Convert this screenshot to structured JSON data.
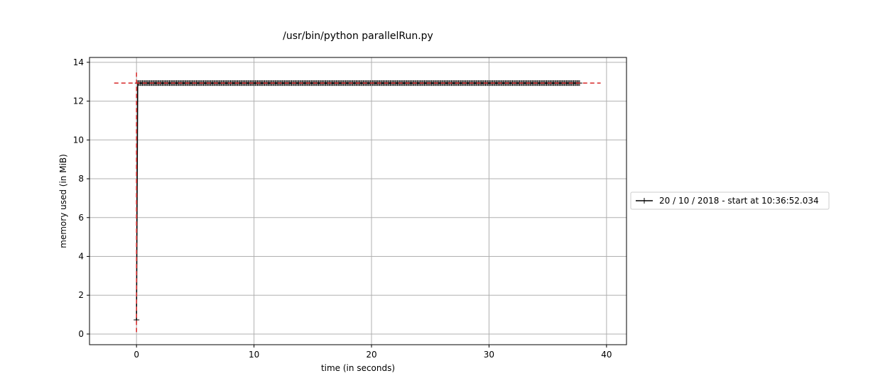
{
  "chart_data": {
    "type": "line",
    "title": "/usr/bin/python parallelRun.py",
    "xlabel": "time (in seconds)",
    "ylabel": "memory used (in MiB)",
    "xlim": [
      -4,
      41.7
    ],
    "ylim": [
      -0.55,
      14.25
    ],
    "xticks": [
      0,
      10,
      20,
      30,
      40
    ],
    "yticks": [
      0,
      2,
      4,
      6,
      8,
      10,
      12,
      14
    ],
    "xtick_labels": [
      "0",
      "10",
      "20",
      "30",
      "40"
    ],
    "ytick_labels": [
      "0",
      "2",
      "4",
      "6",
      "8",
      "10",
      "12",
      "14"
    ],
    "grid": true,
    "legend_position": "right-outside",
    "series": [
      {
        "name": "20 / 10 / 2018 - start at 10:36:52.034",
        "color": "#000000",
        "marker": "+",
        "start": {
          "x": 0.0,
          "y": 0.73
        },
        "plateau": {
          "x_start": 0.1,
          "x_end": 37.7,
          "y": 12.93,
          "sample_interval": 0.1
        }
      }
    ],
    "reference_lines": [
      {
        "kind": "horizontal",
        "y": 12.93,
        "x_from": -1.9,
        "x_to": 39.5,
        "color": "#d62728",
        "style": "dashed"
      },
      {
        "kind": "vertical",
        "x": 0.0,
        "y_from": 0.1,
        "y_to": 13.6,
        "color": "#d62728",
        "style": "dashed"
      }
    ]
  }
}
